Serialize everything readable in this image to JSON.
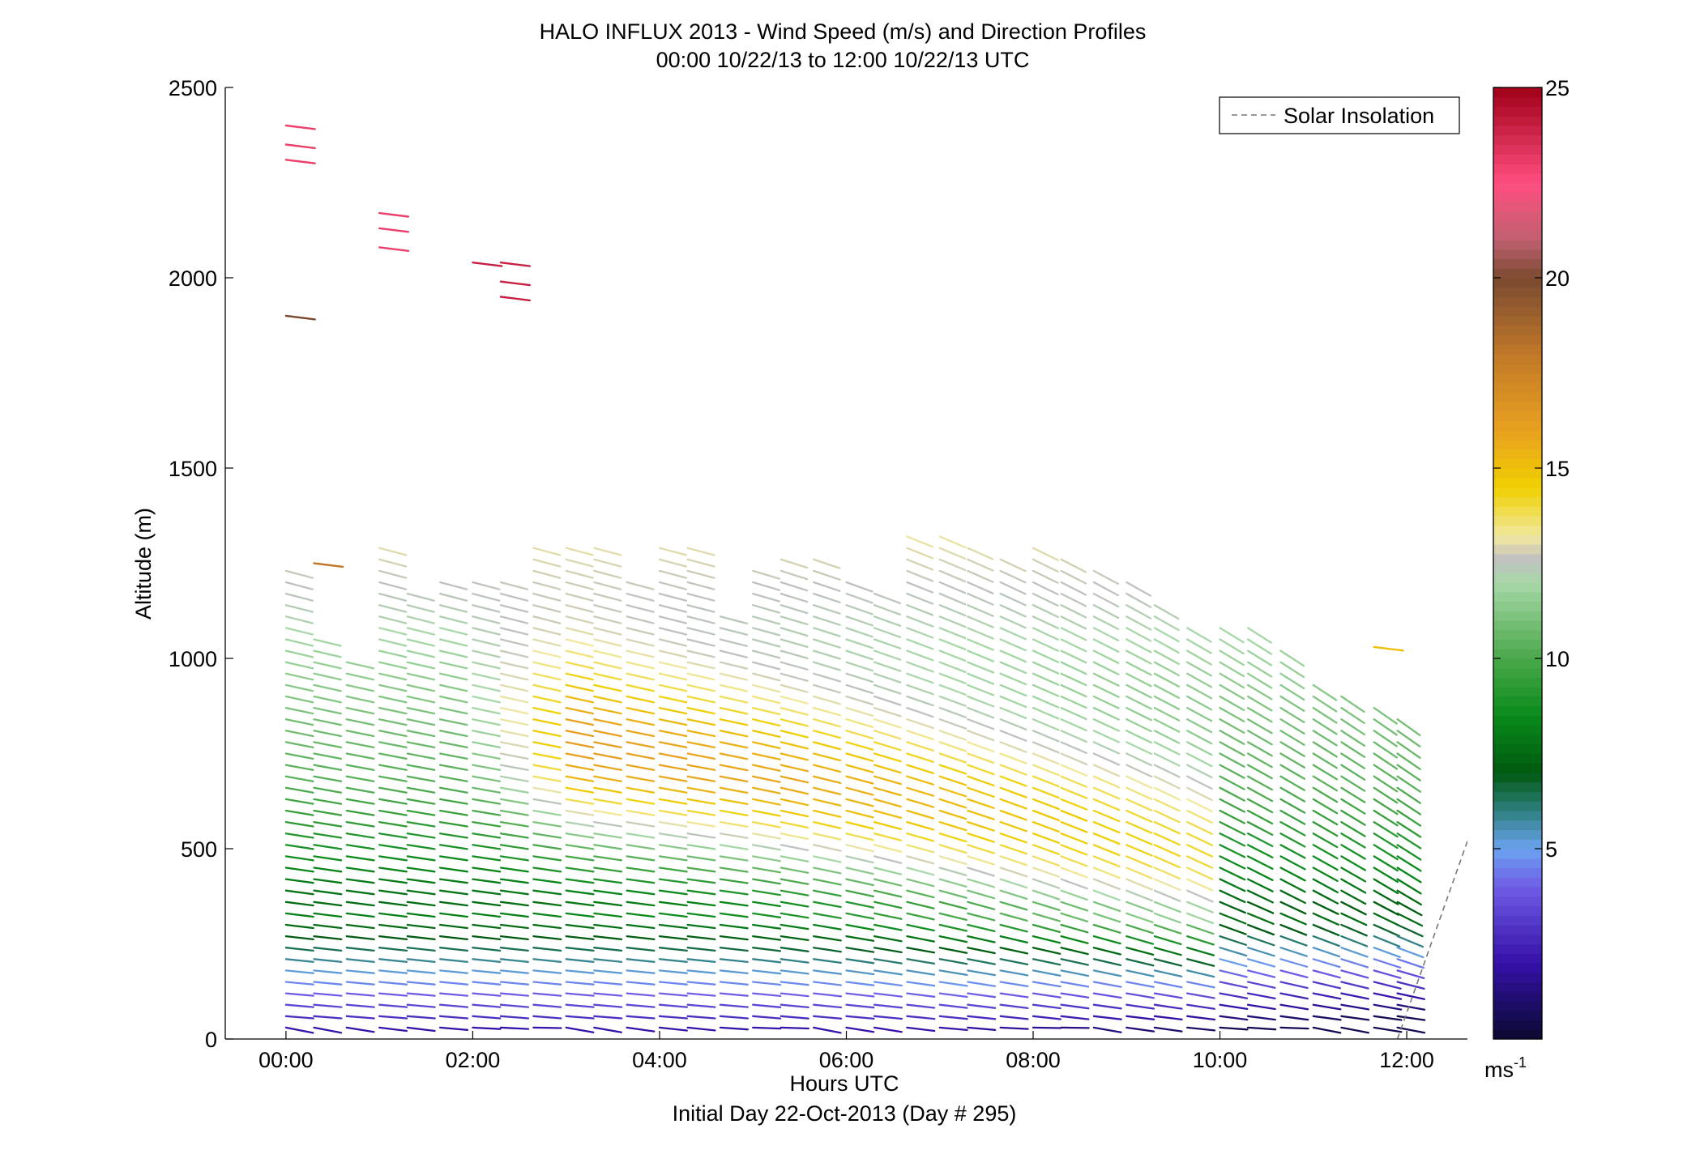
{
  "chart_data": {
    "type": "scatter",
    "title": "HALO INFLUX 2013 - Wind Speed (m/s) and Direction Profiles",
    "subtitle": "00:00 10/22/13 to 12:00 10/22/13  UTC",
    "xlabel": "Hours UTC",
    "xlabel2": "Initial Day 22-Oct-2013 (Day # 295)",
    "ylabel": "Altitude (m)",
    "xlim": [
      -0.65,
      12.65
    ],
    "ylim": [
      0,
      2500
    ],
    "x_ticks": [
      {
        "value": 0,
        "label": "00:00"
      },
      {
        "value": 2,
        "label": "02:00"
      },
      {
        "value": 4,
        "label": "04:00"
      },
      {
        "value": 6,
        "label": "06:00"
      },
      {
        "value": 8,
        "label": "08:00"
      },
      {
        "value": 10,
        "label": "10:00"
      },
      {
        "value": 12,
        "label": "12:00"
      }
    ],
    "y_ticks": [
      {
        "value": 0,
        "label": "0"
      },
      {
        "value": 500,
        "label": "500"
      },
      {
        "value": 1000,
        "label": "1000"
      },
      {
        "value": 1500,
        "label": "1500"
      },
      {
        "value": 2000,
        "label": "2000"
      },
      {
        "value": 2500,
        "label": "2500"
      }
    ],
    "grid": false,
    "legend": {
      "placement": "top-right",
      "entries": [
        {
          "label": "Solar Insolation",
          "style": "dashed",
          "color": "#777777"
        }
      ]
    },
    "colorbar": {
      "min": 0,
      "max": 25,
      "ticks": [
        {
          "value": 5,
          "label": "5"
        },
        {
          "value": 10,
          "label": "10"
        },
        {
          "value": 15,
          "label": "15"
        },
        {
          "value": 20,
          "label": "20"
        },
        {
          "value": 25,
          "label": "25"
        }
      ],
      "unit_label": "ms",
      "unit_exponent": "-1",
      "stops": [
        {
          "value": 0,
          "color": "#0a0a30"
        },
        {
          "value": 2,
          "color": "#3510a8"
        },
        {
          "value": 4,
          "color": "#6f5ce6"
        },
        {
          "value": 5,
          "color": "#6aa3f0"
        },
        {
          "value": 6,
          "color": "#2f8080"
        },
        {
          "value": 7,
          "color": "#005a10"
        },
        {
          "value": 8.5,
          "color": "#0a8a1a"
        },
        {
          "value": 10,
          "color": "#4aa84a"
        },
        {
          "value": 12,
          "color": "#a8d8a8"
        },
        {
          "value": 12.6,
          "color": "#c0c0c0"
        },
        {
          "value": 13.2,
          "color": "#f0e8a0"
        },
        {
          "value": 14.5,
          "color": "#f0d000"
        },
        {
          "value": 16,
          "color": "#e8a020"
        },
        {
          "value": 18,
          "color": "#c07828"
        },
        {
          "value": 20,
          "color": "#7a4a30"
        },
        {
          "value": 21,
          "color": "#c06070"
        },
        {
          "value": 22.5,
          "color": "#ff4e80"
        },
        {
          "value": 25,
          "color": "#a00018"
        }
      ]
    },
    "solar_insolation": {
      "x": [
        11.9,
        12.65
      ],
      "y": [
        0,
        520
      ]
    },
    "profiles": [
      {
        "hour": 0.0,
        "top": 1230,
        "features": [
          [
            1900,
            20
          ],
          [
            2310,
            23
          ],
          [
            2350,
            23
          ],
          [
            2400,
            23
          ]
        ]
      },
      {
        "hour": 0.3,
        "top": 1050,
        "features": [
          [
            1250,
            18
          ]
        ]
      },
      {
        "hour": 0.65,
        "top": 1010
      },
      {
        "hour": 1.0,
        "top": 1310,
        "features": [
          [
            2080,
            23
          ],
          [
            2130,
            23
          ],
          [
            2170,
            23
          ]
        ]
      },
      {
        "hour": 1.3,
        "top": 1180
      },
      {
        "hour": 1.65,
        "top": 1200
      },
      {
        "hour": 2.0,
        "top": 1200,
        "features": [
          [
            2040,
            24
          ]
        ]
      },
      {
        "hour": 2.3,
        "top": 1210,
        "features": [
          [
            1950,
            24
          ],
          [
            1990,
            24
          ],
          [
            2040,
            24
          ]
        ]
      },
      {
        "hour": 2.65,
        "top": 1310
      },
      {
        "hour": 3.0,
        "top": 1310
      },
      {
        "hour": 3.3,
        "top": 1290
      },
      {
        "hour": 3.65,
        "top": 1200
      },
      {
        "hour": 4.0,
        "top": 1290
      },
      {
        "hour": 4.3,
        "top": 1290
      },
      {
        "hour": 4.65,
        "top": 1130
      },
      {
        "hour": 5.0,
        "top": 1240
      },
      {
        "hour": 5.3,
        "top": 1270
      },
      {
        "hour": 5.65,
        "top": 1260
      },
      {
        "hour": 6.0,
        "top": 1200
      },
      {
        "hour": 6.3,
        "top": 1190
      },
      {
        "hour": 6.65,
        "top": 1320
      },
      {
        "hour": 7.0,
        "top": 1320
      },
      {
        "hour": 7.3,
        "top": 1290
      },
      {
        "hour": 7.65,
        "top": 1270
      },
      {
        "hour": 8.0,
        "top": 1300
      },
      {
        "hour": 8.3,
        "top": 1280
      },
      {
        "hour": 8.65,
        "top": 1250
      },
      {
        "hour": 9.0,
        "top": 1200
      },
      {
        "hour": 9.3,
        "top": 1160
      },
      {
        "hour": 9.65,
        "top": 1100
      },
      {
        "hour": 10.0,
        "top": 1100
      },
      {
        "hour": 10.3,
        "top": 1080
      },
      {
        "hour": 10.65,
        "top": 1020
      },
      {
        "hour": 11.0,
        "top": 930
      },
      {
        "hour": 11.3,
        "top": 900
      },
      {
        "hour": 11.65,
        "top": 870,
        "features": [
          [
            1030,
            15
          ]
        ]
      },
      {
        "hour": 11.9,
        "top": 840
      }
    ]
  }
}
